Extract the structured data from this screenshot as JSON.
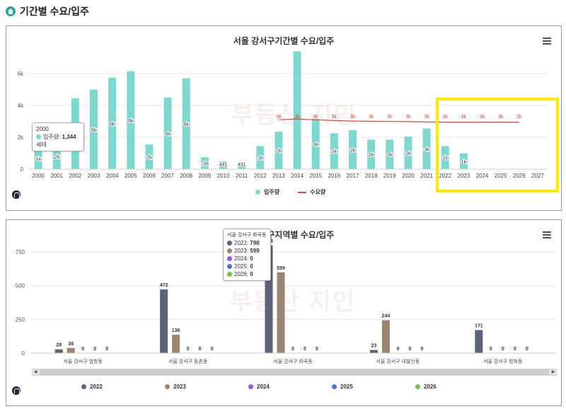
{
  "page": {
    "title": "기간별 수요/입주"
  },
  "watermark": "부동산 지인",
  "colors": {
    "supply": "#7dd8cf",
    "demand": "#e8413b",
    "s2022": "#5c6378",
    "s2023": "#9c8570",
    "s2024": "#9a55e0",
    "s2025": "#4b6fd6",
    "s2026": "#7ac142",
    "highlight": "#ffeb00"
  },
  "chart1": {
    "title": "서울 강서구기간별 수요/입주",
    "legend": {
      "supply": "입주량",
      "demand": "수요량"
    },
    "tooltip": {
      "year": "2000",
      "label": "입주량:",
      "value": "1,344",
      "suffix": "세대"
    },
    "chart_data": {
      "type": "bar",
      "categories": [
        "2000",
        "2001",
        "2002",
        "2003",
        "2004",
        "2005",
        "2006",
        "2007",
        "2008",
        "2009",
        "2010",
        "2011",
        "2012",
        "2013",
        "2014",
        "2015",
        "2016",
        "2017",
        "2018",
        "2019",
        "2020",
        "2021",
        "2022",
        "2023",
        "2024",
        "2025",
        "2026",
        "2027"
      ],
      "ylim": [
        0,
        8000
      ],
      "yticks": [
        0,
        2000,
        4000,
        6000
      ],
      "ytick_labels": [
        "0",
        "2k",
        "4k",
        "6k"
      ],
      "series": [
        {
          "name": "입주량",
          "type": "bar",
          "values": [
            1344,
            1600,
            4450,
            5000,
            5750,
            6150,
            1550,
            4500,
            5700,
            746,
            491,
            431,
            1450,
            2350,
            7400,
            3150,
            2250,
            2450,
            1850,
            1850,
            2050,
            2550,
            1450,
            1000,
            null,
            null,
            null,
            null
          ],
          "labels": [
            "1k",
            "2k",
            "",
            "5k",
            "6k",
            "6k",
            "2k",
            "4k",
            "6k",
            "746",
            "491",
            "431",
            "1k",
            "2k",
            "",
            "3k",
            "2k",
            "2k",
            "2k",
            "2k",
            "2k",
            "3k",
            "1k",
            "1k",
            "",
            "",
            "",
            ""
          ]
        },
        {
          "name": "수요량",
          "type": "line",
          "values": [
            null,
            null,
            null,
            null,
            null,
            null,
            null,
            null,
            null,
            null,
            null,
            null,
            null,
            3100,
            3150,
            3100,
            3050,
            3020,
            3000,
            2990,
            2980,
            2960,
            2950,
            2950,
            2950,
            2950,
            2950,
            null
          ],
          "labels": [
            "",
            "",
            "",
            "",
            "",
            "",
            "",
            "",
            "",
            "",
            "",
            "",
            "",
            "3k",
            "3k",
            "3k",
            "3k",
            "3k",
            "3k",
            "3k",
            "3k",
            "3k",
            "3k",
            "3k",
            "3k",
            "3k",
            "3k",
            ""
          ]
        }
      ]
    }
  },
  "chart2": {
    "title": "서울 강서구지역별 수요/입주",
    "tooltip": {
      "header": "서울 강서구 화곡동",
      "rows": [
        {
          "label": "2022:",
          "value": "798"
        },
        {
          "label": "2023:",
          "value": "599"
        },
        {
          "label": "2024:",
          "value": "0"
        },
        {
          "label": "2025:",
          "value": "0"
        },
        {
          "label": "2026:",
          "value": "0"
        }
      ]
    },
    "chart_data": {
      "type": "bar",
      "categories": [
        "서울 강서구 염창동",
        "서울 강서구 등촌동",
        "서울 강서구 화곡동",
        "서울 강서구 내발산동",
        "서울 강서구 방화동"
      ],
      "ylim": [
        0,
        850
      ],
      "yticks": [
        0,
        250,
        500,
        750
      ],
      "series": [
        {
          "name": "2022",
          "values": [
            28,
            472,
            798,
            23,
            171
          ]
        },
        {
          "name": "2023",
          "values": [
            38,
            136,
            599,
            244,
            0
          ]
        },
        {
          "name": "2024",
          "values": [
            0,
            0,
            0,
            0,
            0
          ]
        },
        {
          "name": "2025",
          "values": [
            0,
            0,
            0,
            0,
            0
          ]
        },
        {
          "name": "2026",
          "values": [
            0,
            0,
            0,
            0,
            0
          ]
        }
      ]
    }
  }
}
